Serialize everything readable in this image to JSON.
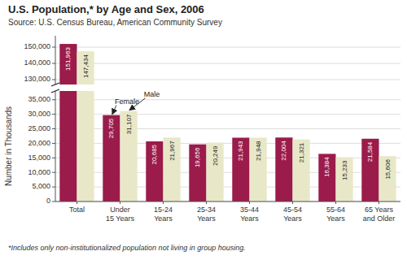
{
  "chart_data": {
    "type": "bar",
    "title": "U.S. Population,* by Age and Sex, 2006",
    "subtitle": "Source: U.S. Census Bureau, American Community Survey",
    "footnote": "*Includes only non-institutionalized population not living in group housing.",
    "ylabel": "Number in Thousands",
    "categories": [
      "Total",
      "Under\n15 Years",
      "15-24\nYears",
      "25-34\nYears",
      "35-44\nYears",
      "45-54\nYears",
      "55-64\nYears",
      "65 Years\nand Older"
    ],
    "series": [
      {
        "name": "Female",
        "color": "#9B1B4B",
        "values": [
          151963,
          29705,
          20685,
          19656,
          21943,
          22004,
          16384,
          21584
        ],
        "value_labels": [
          "151,963",
          "29,705",
          "20,685",
          "19,656",
          "21,943",
          "22,004",
          "16,384",
          "21,584"
        ]
      },
      {
        "name": "Male",
        "color": "#E8E8C8",
        "values": [
          147434,
          31107,
          21967,
          20249,
          21948,
          21321,
          15233,
          15606
        ],
        "value_labels": [
          "147,434",
          "31,107",
          "21,967",
          "20,249",
          "21,948",
          "21,321",
          "15,233",
          "15,606"
        ]
      }
    ],
    "ylim": [
      0,
      157000
    ],
    "yticks": [
      0,
      {
        "value": 5000,
        "label": "5,000"
      },
      {
        "value": 10000,
        "label": "10,000"
      },
      {
        "value": 15000,
        "label": "15,000"
      },
      {
        "value": 20000,
        "label": "20,000"
      },
      {
        "value": 25000,
        "label": "25,000"
      },
      {
        "value": 30000,
        "label": "30,000"
      },
      {
        "value": 35000,
        "label": "35,000"
      },
      {
        "value": 130000,
        "label": "130,000"
      },
      {
        "value": 140000,
        "label": "140,000"
      },
      {
        "value": 150000,
        "label": "150,000"
      }
    ],
    "grid": true,
    "data_labels": true
  }
}
